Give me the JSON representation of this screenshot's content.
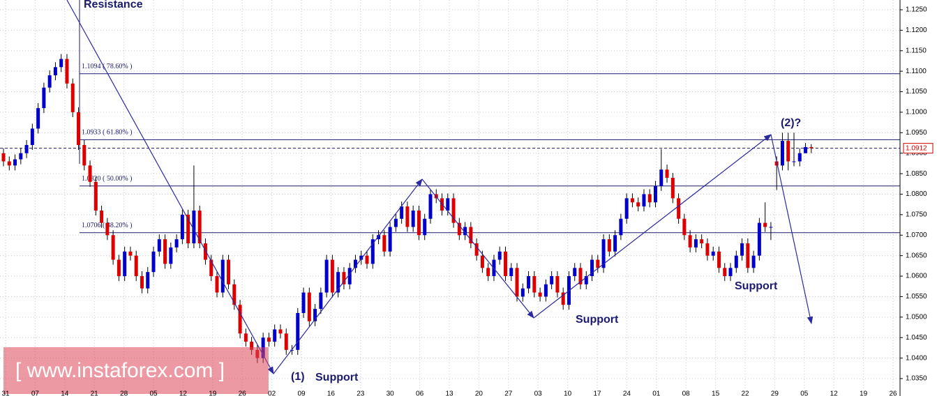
{
  "chart_data": {
    "type": "candlestick",
    "up_color": "#0000cc",
    "down_color": "#dd0000",
    "grid": true,
    "ylim": [
      1.03075,
      1.12738
    ],
    "yticks": [
      {
        "value": 1.035,
        "label": "1.0350"
      },
      {
        "value": 1.04,
        "label": "1.0400"
      },
      {
        "value": 1.045,
        "label": "1.0450"
      },
      {
        "value": 1.05,
        "label": "1.0500"
      },
      {
        "value": 1.055,
        "label": "1.0550"
      },
      {
        "value": 1.06,
        "label": "1.0600"
      },
      {
        "value": 1.065,
        "label": "1.0650"
      },
      {
        "value": 1.07,
        "label": "1.0700"
      },
      {
        "value": 1.075,
        "label": "1.0750"
      },
      {
        "value": 1.08,
        "label": "1.0800"
      },
      {
        "value": 1.085,
        "label": "1.0850"
      },
      {
        "value": 1.09,
        "label": "1.0900"
      },
      {
        "value": 1.095,
        "label": "1.0950"
      },
      {
        "value": 1.1,
        "label": "1.1000"
      },
      {
        "value": 1.105,
        "label": "1.1050"
      },
      {
        "value": 1.11,
        "label": "1.1100"
      },
      {
        "value": 1.115,
        "label": "1.1150"
      },
      {
        "value": 1.12,
        "label": "1.1200"
      },
      {
        "value": 1.125,
        "label": "1.1250"
      }
    ],
    "x_labels": [
      "31",
      "07",
      "14",
      "21",
      "28",
      "05",
      "12",
      "19",
      "26",
      "02",
      "09",
      "16",
      "23",
      "30",
      "06",
      "13",
      "20",
      "27",
      "03",
      "10",
      "17",
      "24",
      "01",
      "08",
      "15",
      "22",
      "29",
      "05",
      "12",
      "19",
      "26"
    ],
    "fib_levels": [
      {
        "value": 1.1094,
        "label": "1.1094 ( 78.60% )"
      },
      {
        "value": 1.0933,
        "label": "1.0933 ( 61.80% )"
      },
      {
        "value": 1.082,
        "label": "1.0820 ( 50.00% )"
      },
      {
        "value": 1.0706,
        "label": "1.0706 ( 38.20% )"
      }
    ],
    "current_price": {
      "value": 1.0912,
      "label": "1.0912"
    },
    "annotations": [
      "Resistance",
      "(2)?",
      "(1)",
      "Support",
      "Support",
      "Support"
    ],
    "candles": [
      [
        1.09,
        1.0912,
        1.0868,
        1.088
      ],
      [
        1.088,
        1.0892,
        1.0858,
        1.087
      ],
      [
        1.087,
        1.0897,
        1.0858,
        1.0885
      ],
      [
        1.0885,
        1.0912,
        1.0873,
        1.09
      ],
      [
        1.09,
        1.0932,
        1.0888,
        1.092
      ],
      [
        1.092,
        1.0972,
        1.0908,
        1.096
      ],
      [
        1.096,
        1.1022,
        1.0948,
        1.101
      ],
      [
        1.101,
        1.1072,
        1.0998,
        1.106
      ],
      [
        1.106,
        1.1102,
        1.1048,
        1.109
      ],
      [
        1.109,
        1.1122,
        1.1078,
        1.111
      ],
      [
        1.111,
        1.1142,
        1.1098,
        1.113
      ],
      [
        1.113,
        1.1142,
        1.1058,
        1.107
      ],
      [
        1.107,
        1.1082,
        1.0988,
        1.1
      ],
      [
        1.1,
        1.1012,
        1.0908,
        1.092
      ],
      [
        1.092,
        1.0932,
        1.0858,
        1.087
      ],
      [
        1.087,
        1.0882,
        1.0818,
        1.083
      ],
      [
        1.083,
        1.0842,
        1.0748,
        1.076
      ],
      [
        1.076,
        1.0772,
        1.0718,
        1.073
      ],
      [
        1.073,
        1.0742,
        1.0688,
        1.07
      ],
      [
        1.07,
        1.0712,
        1.0628,
        1.064
      ],
      [
        1.064,
        1.0652,
        1.0588,
        1.06
      ],
      [
        1.06,
        1.0672,
        1.0588,
        1.066
      ],
      [
        1.066,
        1.0672,
        1.0638,
        1.065
      ],
      [
        1.065,
        1.0662,
        1.0588,
        1.06
      ],
      [
        1.06,
        1.0612,
        1.0558,
        1.057
      ],
      [
        1.057,
        1.0622,
        1.0558,
        1.061
      ],
      [
        1.061,
        1.0672,
        1.0598,
        1.066
      ],
      [
        1.066,
        1.0702,
        1.0648,
        1.069
      ],
      [
        1.069,
        1.0702,
        1.0618,
        1.063
      ],
      [
        1.063,
        1.0682,
        1.0618,
        1.067
      ],
      [
        1.067,
        1.0702,
        1.0658,
        1.069
      ],
      [
        1.069,
        1.0762,
        1.0678,
        1.075
      ],
      [
        1.075,
        1.0762,
        1.0668,
        1.068
      ],
      [
        1.068,
        1.087,
        1.0668,
        1.076
      ],
      [
        1.076,
        1.0772,
        1.0668,
        1.068
      ],
      [
        1.068,
        1.0692,
        1.0628,
        1.064
      ],
      [
        1.064,
        1.0652,
        1.0588,
        1.06
      ],
      [
        1.06,
        1.0612,
        1.0548,
        1.056
      ],
      [
        1.056,
        1.0652,
        1.0548,
        1.064
      ],
      [
        1.064,
        1.0652,
        1.0568,
        1.058
      ],
      [
        1.058,
        1.0592,
        1.0518,
        1.053
      ],
      [
        1.053,
        1.0542,
        1.0448,
        1.046
      ],
      [
        1.046,
        1.0472,
        1.0428,
        1.044
      ],
      [
        1.044,
        1.0452,
        1.0408,
        1.042
      ],
      [
        1.042,
        1.0432,
        1.0388,
        1.04
      ],
      [
        1.04,
        1.0462,
        1.0388,
        1.045
      ],
      [
        1.045,
        1.0462,
        1.0428,
        1.044
      ],
      [
        1.044,
        1.0482,
        1.0428,
        1.047
      ],
      [
        1.047,
        1.0482,
        1.0448,
        1.046
      ],
      [
        1.046,
        1.0472,
        1.0408,
        1.042
      ],
      [
        1.042,
        1.0432,
        1.0408,
        1.042
      ],
      [
        1.042,
        1.0522,
        1.0408,
        1.051
      ],
      [
        1.051,
        1.0572,
        1.0498,
        1.056
      ],
      [
        1.056,
        1.0572,
        1.0478,
        1.049
      ],
      [
        1.049,
        1.0532,
        1.0478,
        1.052
      ],
      [
        1.052,
        1.0572,
        1.0508,
        1.056
      ],
      [
        1.056,
        1.0652,
        1.0548,
        1.064
      ],
      [
        1.064,
        1.0652,
        1.0548,
        1.056
      ],
      [
        1.056,
        1.0622,
        1.0548,
        1.061
      ],
      [
        1.061,
        1.0622,
        1.0568,
        1.058
      ],
      [
        1.058,
        1.0632,
        1.0568,
        1.062
      ],
      [
        1.062,
        1.0652,
        1.0608,
        1.064
      ],
      [
        1.064,
        1.0662,
        1.0628,
        1.065
      ],
      [
        1.065,
        1.0662,
        1.0618,
        1.063
      ],
      [
        1.063,
        1.0702,
        1.0618,
        1.069
      ],
      [
        1.069,
        1.0712,
        1.0678,
        1.07
      ],
      [
        1.07,
        1.0712,
        1.0648,
        1.066
      ],
      [
        1.066,
        1.0732,
        1.0648,
        1.072
      ],
      [
        1.072,
        1.0752,
        1.0708,
        1.074
      ],
      [
        1.074,
        1.0782,
        1.0728,
        1.077
      ],
      [
        1.077,
        1.0782,
        1.0708,
        1.072
      ],
      [
        1.072,
        1.0772,
        1.0708,
        1.076
      ],
      [
        1.076,
        1.0772,
        1.0688,
        1.07
      ],
      [
        1.07,
        1.0752,
        1.0688,
        1.074
      ],
      [
        1.074,
        1.0812,
        1.0728,
        1.08
      ],
      [
        1.08,
        1.0812,
        1.0778,
        1.079
      ],
      [
        1.079,
        1.0802,
        1.0748,
        1.076
      ],
      [
        1.076,
        1.0802,
        1.0748,
        1.079
      ],
      [
        1.079,
        1.0802,
        1.0718,
        1.073
      ],
      [
        1.073,
        1.0742,
        1.0688,
        1.07
      ],
      [
        1.07,
        1.0732,
        1.0688,
        1.072
      ],
      [
        1.072,
        1.0732,
        1.0668,
        1.068
      ],
      [
        1.068,
        1.0692,
        1.0638,
        1.065
      ],
      [
        1.065,
        1.0662,
        1.0608,
        1.062
      ],
      [
        1.062,
        1.0632,
        1.0588,
        1.06
      ],
      [
        1.06,
        1.0652,
        1.0588,
        1.064
      ],
      [
        1.064,
        1.0672,
        1.0628,
        1.066
      ],
      [
        1.066,
        1.0672,
        1.0588,
        1.06
      ],
      [
        1.06,
        1.0632,
        1.0588,
        1.062
      ],
      [
        1.062,
        1.0632,
        1.0538,
        1.055
      ],
      [
        1.055,
        1.0582,
        1.0538,
        1.057
      ],
      [
        1.057,
        1.0612,
        1.0558,
        1.06
      ],
      [
        1.06,
        1.0612,
        1.0548,
        1.056
      ],
      [
        1.056,
        1.0572,
        1.0538,
        1.055
      ],
      [
        1.055,
        1.0592,
        1.0538,
        1.058
      ],
      [
        1.058,
        1.0612,
        1.0568,
        1.06
      ],
      [
        1.06,
        1.0612,
        1.0548,
        1.056
      ],
      [
        1.056,
        1.0572,
        1.0518,
        1.053
      ],
      [
        1.053,
        1.0612,
        1.0518,
        1.06
      ],
      [
        1.06,
        1.0632,
        1.0588,
        1.062
      ],
      [
        1.062,
        1.0632,
        1.0568,
        1.058
      ],
      [
        1.058,
        1.0612,
        1.0568,
        1.06
      ],
      [
        1.06,
        1.0652,
        1.0588,
        1.064
      ],
      [
        1.064,
        1.0652,
        1.0608,
        1.062
      ],
      [
        1.062,
        1.0702,
        1.0608,
        1.069
      ],
      [
        1.069,
        1.0702,
        1.0648,
        1.066
      ],
      [
        1.066,
        1.0712,
        1.0648,
        1.07
      ],
      [
        1.07,
        1.0752,
        1.0688,
        1.074
      ],
      [
        1.074,
        1.0802,
        1.0728,
        1.079
      ],
      [
        1.079,
        1.0802,
        1.0768,
        1.078
      ],
      [
        1.078,
        1.0792,
        1.0758,
        1.077
      ],
      [
        1.077,
        1.0812,
        1.0758,
        1.08
      ],
      [
        1.08,
        1.0812,
        1.0768,
        1.078
      ],
      [
        1.078,
        1.0832,
        1.0768,
        1.082
      ],
      [
        1.082,
        1.091,
        1.0808,
        1.086
      ],
      [
        1.086,
        1.0872,
        1.0828,
        1.084
      ],
      [
        1.084,
        1.0852,
        1.0778,
        1.079
      ],
      [
        1.079,
        1.0802,
        1.0728,
        1.074
      ],
      [
        1.074,
        1.0752,
        1.0688,
        1.07
      ],
      [
        1.07,
        1.0712,
        1.0658,
        1.067
      ],
      [
        1.067,
        1.0702,
        1.0658,
        1.069
      ],
      [
        1.069,
        1.0702,
        1.0668,
        1.068
      ],
      [
        1.068,
        1.0692,
        1.0638,
        1.065
      ],
      [
        1.065,
        1.0672,
        1.0638,
        1.066
      ],
      [
        1.066,
        1.0672,
        1.0608,
        1.062
      ],
      [
        1.062,
        1.0632,
        1.0588,
        1.06
      ],
      [
        1.06,
        1.0632,
        1.0588,
        1.062
      ],
      [
        1.062,
        1.0662,
        1.0608,
        1.065
      ],
      [
        1.065,
        1.0692,
        1.0638,
        1.068
      ],
      [
        1.068,
        1.0692,
        1.0608,
        1.062
      ],
      [
        1.062,
        1.0662,
        1.0608,
        1.065
      ],
      [
        1.065,
        1.0742,
        1.0638,
        1.073
      ],
      [
        1.073,
        1.078,
        1.0708,
        1.072
      ],
      [
        1.072,
        1.0732,
        1.0688,
        1.072
      ],
      [
        1.088,
        1.0892,
        1.081,
        1.087
      ],
      [
        1.087,
        1.095,
        1.0858,
        1.093
      ],
      [
        1.093,
        1.095,
        1.0858,
        1.088
      ],
      [
        1.088,
        1.095,
        1.0868,
        1.088
      ],
      [
        1.088,
        1.0912,
        1.0868,
        1.09
      ],
      [
        1.09,
        1.0925,
        1.09,
        1.0915
      ],
      [
        1.0915,
        1.0922,
        1.09,
        1.0912
      ]
    ]
  },
  "watermark": "[  www.instaforex.com ]"
}
